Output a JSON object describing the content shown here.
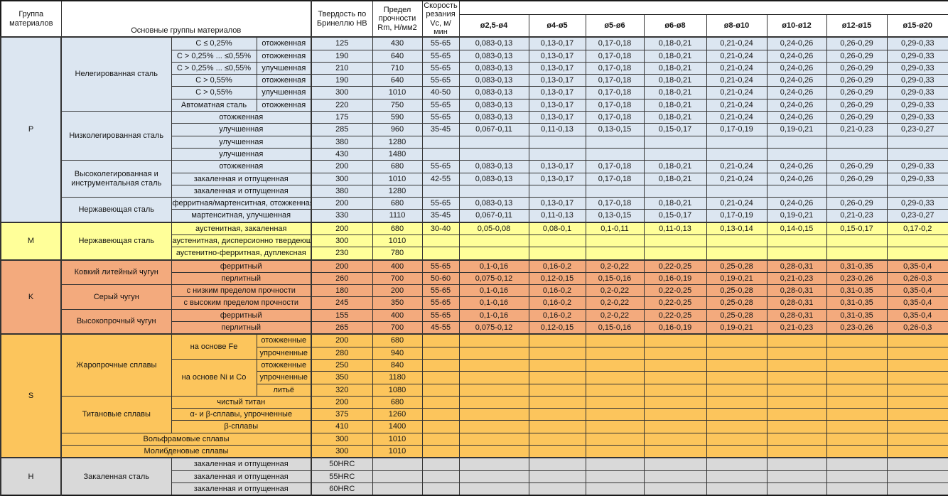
{
  "chart_data": {
    "type": "table",
    "header": {
      "col_group": "Группа материалов",
      "col_main": "Основные группы материалов",
      "col_hb": "Твердость по Бринеллю НВ",
      "col_rm": "Предел прочности Rm, Н/мм2",
      "col_vc": "Скорость резания Vc, м/мин",
      "diameters": [
        "ø2,5-ø4",
        "ø4-ø5",
        "ø5-ø6",
        "ø6-ø8",
        "ø8-ø10",
        "ø10-ø12",
        "ø12-ø15",
        "ø15-ø20"
      ]
    },
    "band_colors": {
      "P": "#dce6f1",
      "M": "#ffff99",
      "K": "#f3aa7d",
      "S": "#fcc55c",
      "H": "#d9d9d9"
    },
    "rows": [
      {
        "band": "P",
        "labels": [
          {
            "t": "P",
            "k": "g",
            "rs": 15
          },
          {
            "t": "Нелегированная сталь",
            "k": "m",
            "rs": 6
          },
          {
            "t": "C ≤ 0,25%",
            "k": "s"
          },
          {
            "t": "отожженная",
            "k": "s"
          }
        ],
        "hb": "125",
        "rm": "430",
        "vc": "55-65",
        "d": [
          "0,083-0,13",
          "0,13-0,17",
          "0,17-0,18",
          "0,18-0,21",
          "0,21-0,24",
          "0,24-0,26",
          "0,26-0,29",
          "0,29-0,33"
        ]
      },
      {
        "band": "P",
        "labels": [
          {
            "t": "C > 0,25% ... ≤0,55%",
            "k": "s"
          },
          {
            "t": "отожженная",
            "k": "s"
          }
        ],
        "hb": "190",
        "rm": "640",
        "vc": "55-65",
        "d": [
          "0,083-0,13",
          "0,13-0,17",
          "0,17-0,18",
          "0,18-0,21",
          "0,21-0,24",
          "0,24-0,26",
          "0,26-0,29",
          "0,29-0,33"
        ]
      },
      {
        "band": "P",
        "labels": [
          {
            "t": "C > 0,25% ... ≤0,55%",
            "k": "s"
          },
          {
            "t": "улучшенная",
            "k": "s"
          }
        ],
        "hb": "210",
        "rm": "710",
        "vc": "55-65",
        "d": [
          "0,083-0,13",
          "0,13-0,17",
          "0,17-0,18",
          "0,18-0,21",
          "0,21-0,24",
          "0,24-0,26",
          "0,26-0,29",
          "0,29-0,33"
        ]
      },
      {
        "band": "P",
        "labels": [
          {
            "t": "C > 0,55%",
            "k": "s"
          },
          {
            "t": "отожженная",
            "k": "s"
          }
        ],
        "hb": "190",
        "rm": "640",
        "vc": "55-65",
        "d": [
          "0,083-0,13",
          "0,13-0,17",
          "0,17-0,18",
          "0,18-0,21",
          "0,21-0,24",
          "0,24-0,26",
          "0,26-0,29",
          "0,29-0,33"
        ]
      },
      {
        "band": "P",
        "labels": [
          {
            "t": "C > 0,55%",
            "k": "s"
          },
          {
            "t": "улучшенная",
            "k": "s"
          }
        ],
        "hb": "300",
        "rm": "1010",
        "vc": "40-50",
        "d": [
          "0,083-0,13",
          "0,13-0,17",
          "0,17-0,18",
          "0,18-0,21",
          "0,21-0,24",
          "0,24-0,26",
          "0,26-0,29",
          "0,29-0,33"
        ]
      },
      {
        "band": "P",
        "labels": [
          {
            "t": "Автоматная сталь",
            "k": "s"
          },
          {
            "t": "отожженная",
            "k": "s"
          }
        ],
        "hb": "220",
        "rm": "750",
        "vc": "55-65",
        "d": [
          "0,083-0,13",
          "0,13-0,17",
          "0,17-0,18",
          "0,18-0,21",
          "0,21-0,24",
          "0,24-0,26",
          "0,26-0,29",
          "0,29-0,33"
        ]
      },
      {
        "band": "P",
        "labels": [
          {
            "t": "Низколегированная сталь",
            "k": "m",
            "rs": 4
          },
          {
            "t": "отожженная",
            "k": "s",
            "cs": 2
          }
        ],
        "hb": "175",
        "rm": "590",
        "vc": "55-65",
        "d": [
          "0,083-0,13",
          "0,13-0,17",
          "0,17-0,18",
          "0,18-0,21",
          "0,21-0,24",
          "0,24-0,26",
          "0,26-0,29",
          "0,29-0,33"
        ]
      },
      {
        "band": "P",
        "labels": [
          {
            "t": "улучшенная",
            "k": "s",
            "cs": 2
          }
        ],
        "hb": "285",
        "rm": "960",
        "vc": "35-45",
        "d": [
          "0,067-0,11",
          "0,11-0,13",
          "0,13-0,15",
          "0,15-0,17",
          "0,17-0,19",
          "0,19-0,21",
          "0,21-0,23",
          "0,23-0,27"
        ]
      },
      {
        "band": "P",
        "labels": [
          {
            "t": "улучшенная",
            "k": "s",
            "cs": 2
          }
        ],
        "hb": "380",
        "rm": "1280",
        "vc": "",
        "d": [
          "",
          "",
          "",
          "",
          "",
          "",
          "",
          ""
        ]
      },
      {
        "band": "P",
        "labels": [
          {
            "t": "улучшенная",
            "k": "s",
            "cs": 2
          }
        ],
        "hb": "430",
        "rm": "1480",
        "vc": "",
        "d": [
          "",
          "",
          "",
          "",
          "",
          "",
          "",
          ""
        ]
      },
      {
        "band": "P",
        "labels": [
          {
            "t": "Высоколегированная и инструментальная сталь",
            "k": "m",
            "rs": 3
          },
          {
            "t": "отожженная",
            "k": "s",
            "cs": 2
          }
        ],
        "hb": "200",
        "rm": "680",
        "vc": "55-65",
        "d": [
          "0,083-0,13",
          "0,13-0,17",
          "0,17-0,18",
          "0,18-0,21",
          "0,21-0,24",
          "0,24-0,26",
          "0,26-0,29",
          "0,29-0,33"
        ]
      },
      {
        "band": "P",
        "labels": [
          {
            "t": "закаленная и отпущенная",
            "k": "s",
            "cs": 2
          }
        ],
        "hb": "300",
        "rm": "1010",
        "vc": "42-55",
        "d": [
          "0,083-0,13",
          "0,13-0,17",
          "0,17-0,18",
          "0,18-0,21",
          "0,21-0,24",
          "0,24-0,26",
          "0,26-0,29",
          "0,29-0,33"
        ]
      },
      {
        "band": "P",
        "labels": [
          {
            "t": "закаленная и отпущенная",
            "k": "s",
            "cs": 2
          }
        ],
        "hb": "380",
        "rm": "1280",
        "vc": "",
        "d": [
          "",
          "",
          "",
          "",
          "",
          "",
          "",
          ""
        ]
      },
      {
        "band": "P",
        "labels": [
          {
            "t": "Нержавеющая сталь",
            "k": "m",
            "rs": 2
          },
          {
            "t": "ферритная/мартенситная, отожженная",
            "k": "s",
            "cs": 2
          }
        ],
        "hb": "200",
        "rm": "680",
        "vc": "55-65",
        "d": [
          "0,083-0,13",
          "0,13-0,17",
          "0,17-0,18",
          "0,18-0,21",
          "0,21-0,24",
          "0,24-0,26",
          "0,26-0,29",
          "0,29-0,33"
        ]
      },
      {
        "band": "P",
        "labels": [
          {
            "t": "мартенситная, улучшенная",
            "k": "s",
            "cs": 2
          }
        ],
        "hb": "330",
        "rm": "1110",
        "vc": "35-45",
        "d": [
          "0,067-0,11",
          "0,11-0,13",
          "0,13-0,15",
          "0,15-0,17",
          "0,17-0,19",
          "0,19-0,21",
          "0,21-0,23",
          "0,23-0,27"
        ]
      },
      {
        "band": "M",
        "labels": [
          {
            "t": "M",
            "k": "g",
            "rs": 3
          },
          {
            "t": "Нержавеющая сталь",
            "k": "m",
            "rs": 3
          },
          {
            "t": "аустенитная, закаленная",
            "k": "s",
            "cs": 2
          }
        ],
        "hb": "200",
        "rm": "680",
        "vc": "30-40",
        "d": [
          "0,05-0,08",
          "0,08-0,1",
          "0,1-0,11",
          "0,11-0,13",
          "0,13-0,14",
          "0,14-0,15",
          "0,15-0,17",
          "0,17-0,2"
        ]
      },
      {
        "band": "M",
        "labels": [
          {
            "t": "аустенитная, дисперсионно твердеющая",
            "k": "s",
            "cs": 2
          }
        ],
        "hb": "300",
        "rm": "1010",
        "vc": "",
        "d": [
          "",
          "",
          "",
          "",
          "",
          "",
          "",
          ""
        ]
      },
      {
        "band": "M",
        "labels": [
          {
            "t": "аустенитно-ферритная, дуплексная",
            "k": "s",
            "cs": 2
          }
        ],
        "hb": "230",
        "rm": "780",
        "vc": "",
        "d": [
          "",
          "",
          "",
          "",
          "",
          "",
          "",
          ""
        ]
      },
      {
        "band": "K",
        "labels": [
          {
            "t": "K",
            "k": "g",
            "rs": 6
          },
          {
            "t": "Ковкий литейный чугун",
            "k": "m",
            "rs": 2
          },
          {
            "t": "ферритный",
            "k": "s",
            "cs": 2
          }
        ],
        "hb": "200",
        "rm": "400",
        "vc": "55-65",
        "d": [
          "0,1-0,16",
          "0,16-0,2",
          "0,2-0,22",
          "0,22-0,25",
          "0,25-0,28",
          "0,28-0,31",
          "0,31-0,35",
          "0,35-0,4"
        ]
      },
      {
        "band": "K",
        "labels": [
          {
            "t": "перлитный",
            "k": "s",
            "cs": 2
          }
        ],
        "hb": "260",
        "rm": "700",
        "vc": "50-60",
        "d": [
          "0,075-0,12",
          "0,12-0,15",
          "0,15-0,16",
          "0,16-0,19",
          "0,19-0,21",
          "0,21-0,23",
          "0,23-0,26",
          "0,26-0,3"
        ]
      },
      {
        "band": "K",
        "labels": [
          {
            "t": "Серый чугун",
            "k": "m",
            "rs": 2
          },
          {
            "t": "с низким пределом прочности",
            "k": "s",
            "cs": 2
          }
        ],
        "hb": "180",
        "rm": "200",
        "vc": "55-65",
        "d": [
          "0,1-0,16",
          "0,16-0,2",
          "0,2-0,22",
          "0,22-0,25",
          "0,25-0,28",
          "0,28-0,31",
          "0,31-0,35",
          "0,35-0,4"
        ]
      },
      {
        "band": "K",
        "labels": [
          {
            "t": "с высоким пределом прочности",
            "k": "s",
            "cs": 2
          }
        ],
        "hb": "245",
        "rm": "350",
        "vc": "55-65",
        "d": [
          "0,1-0,16",
          "0,16-0,2",
          "0,2-0,22",
          "0,22-0,25",
          "0,25-0,28",
          "0,28-0,31",
          "0,31-0,35",
          "0,35-0,4"
        ]
      },
      {
        "band": "K",
        "labels": [
          {
            "t": "Высокопрочный чугун",
            "k": "m",
            "rs": 2
          },
          {
            "t": "ферритный",
            "k": "s",
            "cs": 2
          }
        ],
        "hb": "155",
        "rm": "400",
        "vc": "55-65",
        "d": [
          "0,1-0,16",
          "0,16-0,2",
          "0,2-0,22",
          "0,22-0,25",
          "0,25-0,28",
          "0,28-0,31",
          "0,31-0,35",
          "0,35-0,4"
        ]
      },
      {
        "band": "K",
        "labels": [
          {
            "t": "перлитный",
            "k": "s",
            "cs": 2
          }
        ],
        "hb": "265",
        "rm": "700",
        "vc": "45-55",
        "d": [
          "0,075-0,12",
          "0,12-0,15",
          "0,15-0,16",
          "0,16-0,19",
          "0,19-0,21",
          "0,21-0,23",
          "0,23-0,26",
          "0,26-0,3"
        ]
      },
      {
        "band": "S",
        "labels": [
          {
            "t": "S",
            "k": "g",
            "rs": 10
          },
          {
            "t": "Жаропрочные сплавы",
            "k": "m",
            "rs": 5
          },
          {
            "t": "на основе Fe",
            "k": "s",
            "rs": 2
          },
          {
            "t": "отожженные",
            "k": "s"
          }
        ],
        "hb": "200",
        "rm": "680",
        "vc": "",
        "d": [
          "",
          "",
          "",
          "",
          "",
          "",
          "",
          ""
        ]
      },
      {
        "band": "S",
        "labels": [
          {
            "t": "упрочненные",
            "k": "s"
          }
        ],
        "hb": "280",
        "rm": "940",
        "vc": "",
        "d": [
          "",
          "",
          "",
          "",
          "",
          "",
          "",
          ""
        ]
      },
      {
        "band": "S",
        "labels": [
          {
            "t": "на основе Ni и Co",
            "k": "s",
            "rs": 3
          },
          {
            "t": "отожженные",
            "k": "s"
          }
        ],
        "hb": "250",
        "rm": "840",
        "vc": "",
        "d": [
          "",
          "",
          "",
          "",
          "",
          "",
          "",
          ""
        ]
      },
      {
        "band": "S",
        "labels": [
          {
            "t": "упрочненные",
            "k": "s"
          }
        ],
        "hb": "350",
        "rm": "1180",
        "vc": "",
        "d": [
          "",
          "",
          "",
          "",
          "",
          "",
          "",
          ""
        ]
      },
      {
        "band": "S",
        "labels": [
          {
            "t": "литьё",
            "k": "s"
          }
        ],
        "hb": "320",
        "rm": "1080",
        "vc": "",
        "d": [
          "",
          "",
          "",
          "",
          "",
          "",
          "",
          ""
        ]
      },
      {
        "band": "S",
        "labels": [
          {
            "t": "Титановые сплавы",
            "k": "m",
            "rs": 3
          },
          {
            "t": "чистый титан",
            "k": "s",
            "cs": 2
          }
        ],
        "hb": "200",
        "rm": "680",
        "vc": "",
        "d": [
          "",
          "",
          "",
          "",
          "",
          "",
          "",
          ""
        ]
      },
      {
        "band": "S",
        "labels": [
          {
            "t": "α- и β-сплавы, упрочненные",
            "k": "s",
            "cs": 2
          }
        ],
        "hb": "375",
        "rm": "1260",
        "vc": "",
        "d": [
          "",
          "",
          "",
          "",
          "",
          "",
          "",
          ""
        ]
      },
      {
        "band": "S",
        "labels": [
          {
            "t": "β-сплавы",
            "k": "s",
            "cs": 2
          }
        ],
        "hb": "410",
        "rm": "1400",
        "vc": "",
        "d": [
          "",
          "",
          "",
          "",
          "",
          "",
          "",
          ""
        ]
      },
      {
        "band": "S",
        "labels": [
          {
            "t": "Вольфрамовые сплавы",
            "k": "m",
            "cs": 3
          }
        ],
        "hb": "300",
        "rm": "1010",
        "vc": "",
        "d": [
          "",
          "",
          "",
          "",
          "",
          "",
          "",
          ""
        ]
      },
      {
        "band": "S",
        "labels": [
          {
            "t": "Молибденовые сплавы",
            "k": "m",
            "cs": 3
          }
        ],
        "hb": "300",
        "rm": "1010",
        "vc": "",
        "d": [
          "",
          "",
          "",
          "",
          "",
          "",
          "",
          ""
        ]
      },
      {
        "band": "H",
        "labels": [
          {
            "t": "H",
            "k": "g",
            "rs": 3
          },
          {
            "t": "Закаленная сталь",
            "k": "m",
            "rs": 3
          },
          {
            "t": "закаленная и отпущенная",
            "k": "s",
            "cs": 2
          }
        ],
        "hb": "50HRC",
        "rm": "",
        "vc": "",
        "d": [
          "",
          "",
          "",
          "",
          "",
          "",
          "",
          ""
        ]
      },
      {
        "band": "H",
        "labels": [
          {
            "t": "закаленная и отпущенная",
            "k": "s",
            "cs": 2
          }
        ],
        "hb": "55HRC",
        "rm": "",
        "vc": "",
        "d": [
          "",
          "",
          "",
          "",
          "",
          "",
          "",
          ""
        ]
      },
      {
        "band": "H",
        "labels": [
          {
            "t": "закаленная и отпущенная",
            "k": "s",
            "cs": 2
          }
        ],
        "hb": "60HRC",
        "rm": "",
        "vc": "",
        "d": [
          "",
          "",
          "",
          "",
          "",
          "",
          "",
          ""
        ]
      }
    ]
  }
}
